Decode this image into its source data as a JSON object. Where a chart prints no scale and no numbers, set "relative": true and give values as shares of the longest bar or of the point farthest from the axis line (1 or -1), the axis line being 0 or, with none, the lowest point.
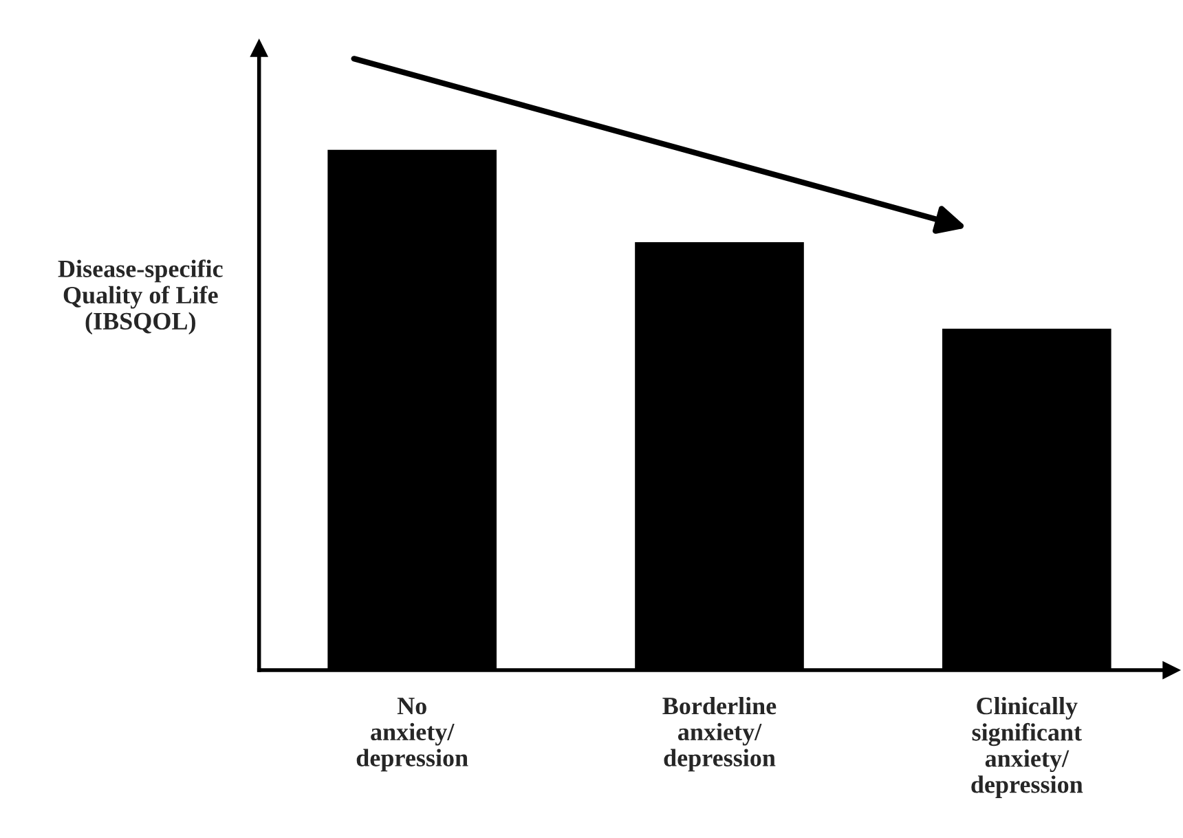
{
  "chart_data": {
    "type": "bar",
    "relative": true,
    "ylabel": "Disease-specific\nQuality of Life\n(IBSQOL)",
    "categories": [
      "No\nanxiety/\ndepression",
      "Borderline\nanxiety/\ndepression",
      "Clinically\nsignificant\nanxiety/\ndepression"
    ],
    "values": [
      1,
      0.823,
      0.657
    ],
    "color": "#000000",
    "grid": false,
    "legend": false,
    "tick_labels": "x"
  }
}
